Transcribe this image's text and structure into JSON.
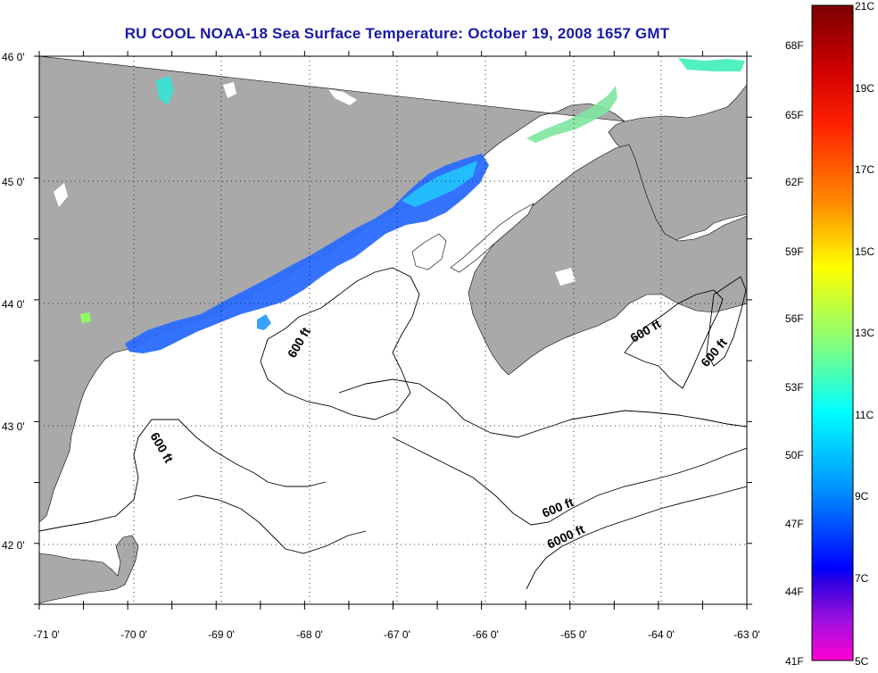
{
  "title": "RU COOL  NOAA-18  Sea Surface Temperature:  October 19, 2008 1657 GMT",
  "map": {
    "lon_labels": [
      "-71 0'",
      "-70 0'",
      "-69 0'",
      "-68 0'",
      "-67 0'",
      "-66 0'",
      "-65 0'",
      "-64 0'",
      "-63 0'"
    ],
    "lat_labels": [
      "46 0'",
      "45 0'",
      "44 0'",
      "43 0'",
      "42 0'"
    ],
    "lon_range": [
      -71,
      -63
    ],
    "lat_range": [
      41.5,
      46
    ],
    "contours": [
      "600 ft",
      "600 ft",
      "600 ft",
      "600 ft",
      "600 ft",
      "6000 ft"
    ],
    "land_color": "#a9a9a9",
    "water_color": "#ffffff"
  },
  "colorbar": {
    "left_labels": [
      "68F",
      "65F",
      "62F",
      "59F",
      "56F",
      "53F",
      "50F",
      "47F",
      "44F",
      "41F"
    ],
    "right_labels": [
      "21C",
      "19C",
      "17C",
      "15C",
      "13C",
      "11C",
      "9C",
      "7C",
      "5C"
    ],
    "colors_top_to_bottom": [
      "#800000",
      "#ff0000",
      "#ff8000",
      "#ffff00",
      "#80ff80",
      "#00ffff",
      "#0080ff",
      "#0000ff",
      "#8000ff",
      "#ff00ff"
    ]
  }
}
